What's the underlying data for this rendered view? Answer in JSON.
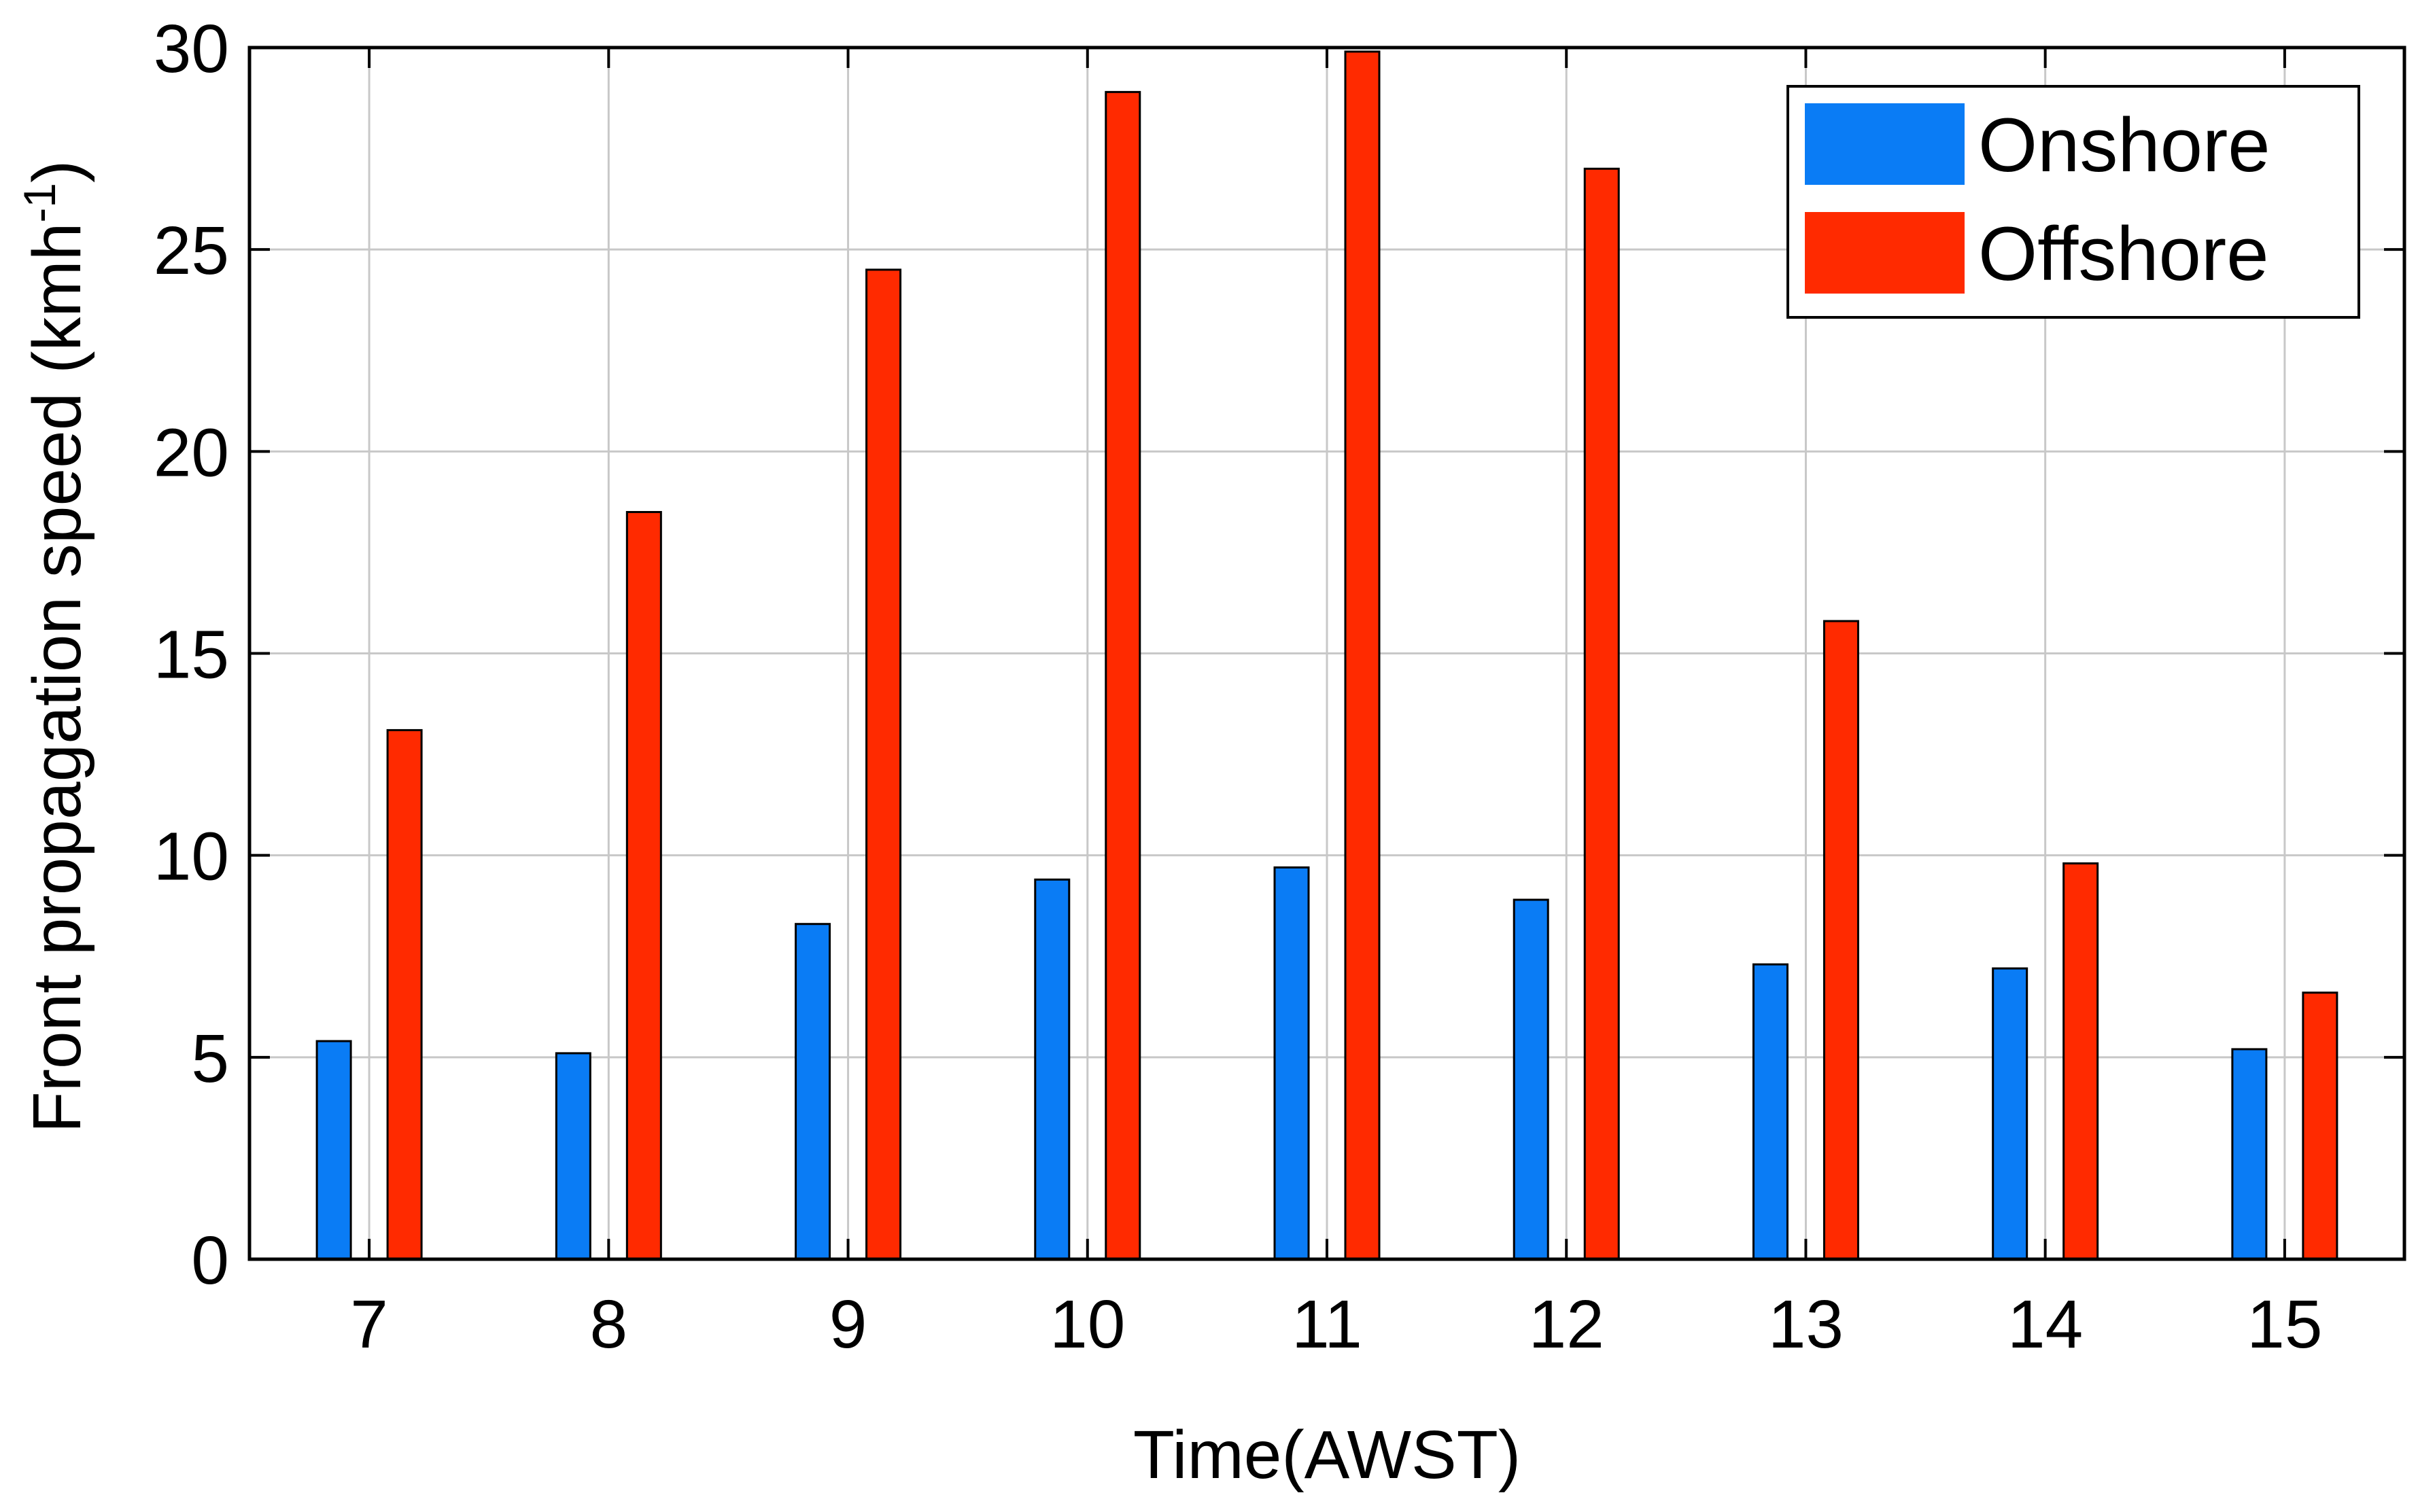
{
  "chart_data": {
    "type": "bar",
    "categories": [
      "7",
      "8",
      "9",
      "10",
      "11",
      "12",
      "13",
      "14",
      "15"
    ],
    "series": [
      {
        "name": "Onshore",
        "values": [
          5.4,
          5.1,
          8.3,
          9.4,
          9.7,
          8.9,
          7.3,
          7.2,
          5.2
        ],
        "color": "#0a7cf5"
      },
      {
        "name": "Offshore",
        "values": [
          13.1,
          18.5,
          24.5,
          28.9,
          29.9,
          27.0,
          15.8,
          9.8,
          6.6
        ],
        "color": "#ff2a00"
      }
    ],
    "title": "",
    "xlabel": "Time(AWST)",
    "ylabel": "Front propagation speed (kmh",
    "ylabel_sup": "-1",
    "ylabel_tail": ")",
    "ylim": [
      0,
      30
    ],
    "yticks": [
      "0",
      "5",
      "10",
      "15",
      "20",
      "25",
      "30"
    ],
    "grid": true,
    "legend_position": "top-right"
  }
}
